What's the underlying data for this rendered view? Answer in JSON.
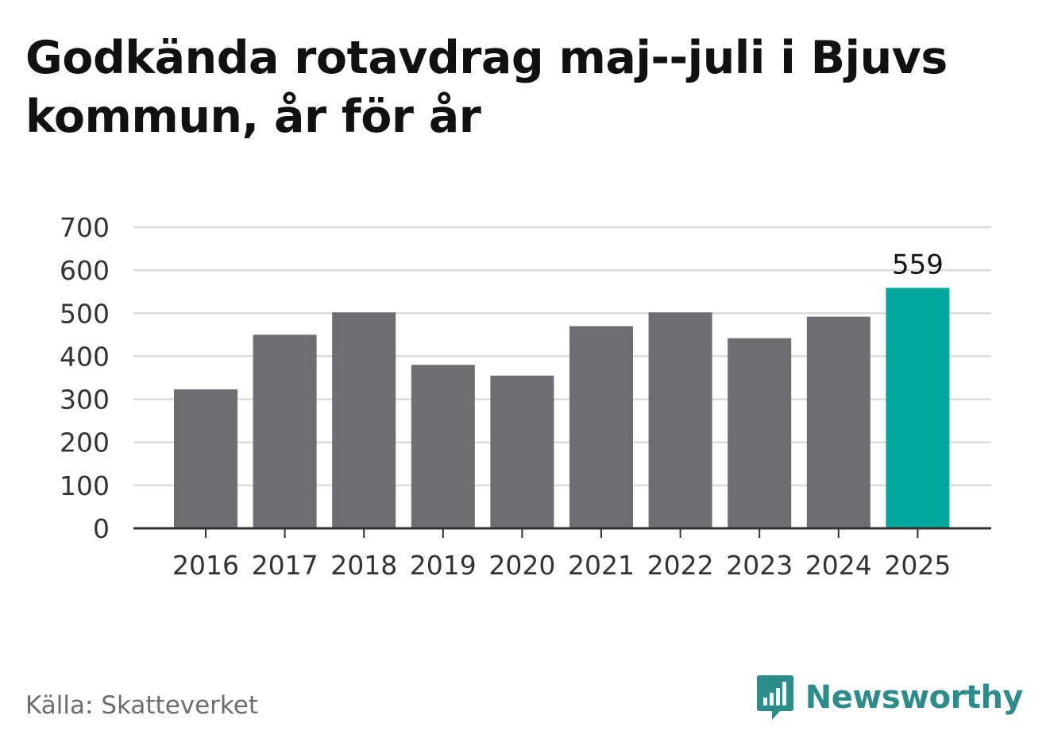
{
  "title": "Godkända rotavdrag maj--juli i Bjuvs kommun, år för år",
  "source": "Källa: Skatteverket",
  "brand": {
    "name": "Newsworthy",
    "icon": "newsworthy-logo-icon",
    "color": "#2c8c8a"
  },
  "chart_data": {
    "type": "bar",
    "categories": [
      "2016",
      "2017",
      "2018",
      "2019",
      "2020",
      "2021",
      "2022",
      "2023",
      "2024",
      "2025"
    ],
    "values": [
      323,
      450,
      502,
      380,
      355,
      470,
      502,
      442,
      492,
      559
    ],
    "highlight_index": 9,
    "data_labels": [
      null,
      null,
      null,
      null,
      null,
      null,
      null,
      null,
      null,
      "559"
    ],
    "yticks": [
      0,
      100,
      200,
      300,
      400,
      500,
      600,
      700
    ],
    "ylim": [
      0,
      700
    ],
    "grid": true,
    "colors": {
      "bar": "#6e6d72",
      "highlight": "#00a79a",
      "grid": "#dcdcdc",
      "axis": "#333333",
      "tick_text": "#333333"
    }
  }
}
